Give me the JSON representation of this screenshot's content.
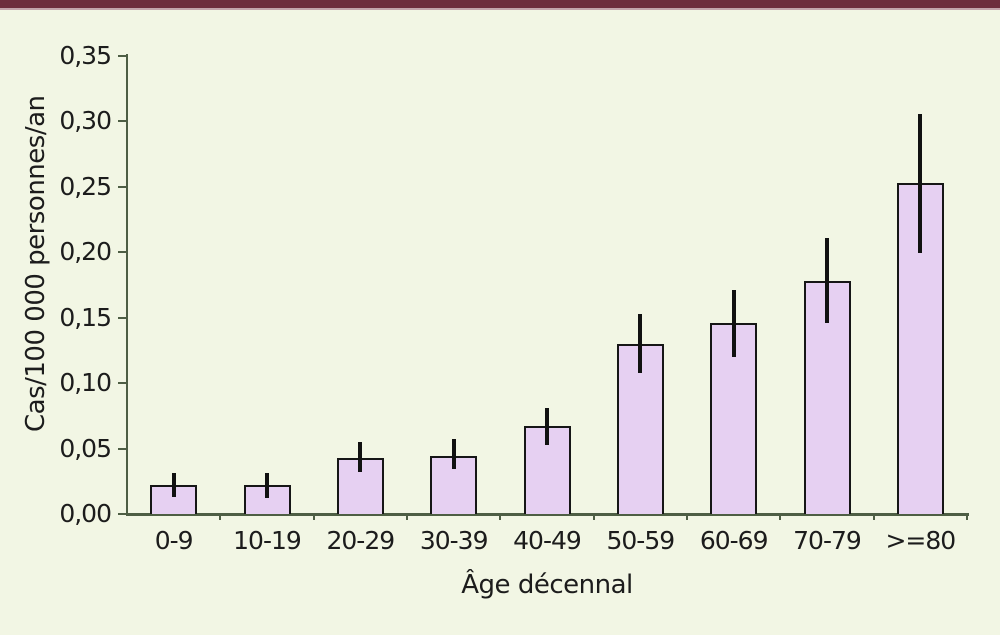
{
  "page": {
    "background": "#f2f6e4",
    "top_bar_color": "#6d2c3d",
    "top_bar_accent_color": "#c2a3ab",
    "axis_color": "#4e5e44",
    "text_color": "#1c1c1c"
  },
  "chart_data": {
    "type": "bar",
    "title": "",
    "xlabel": "Âge décennal",
    "ylabel": "Cas/100 000 personnes/an",
    "categories": [
      "0-9",
      "10-19",
      "20-29",
      "30-39",
      "40-49",
      "50-59",
      "60-69",
      "70-79",
      ">=80"
    ],
    "values": [
      0.022,
      0.022,
      0.043,
      0.044,
      0.067,
      0.13,
      0.146,
      0.178,
      0.253
    ],
    "error_low": [
      0.013,
      0.012,
      0.032,
      0.034,
      0.053,
      0.108,
      0.12,
      0.146,
      0.199
    ],
    "error_high": [
      0.031,
      0.031,
      0.055,
      0.057,
      0.081,
      0.153,
      0.171,
      0.211,
      0.305
    ],
    "ylim": [
      0,
      0.35
    ],
    "ytick_step": 0.05,
    "ytick_labels": [
      "0,00",
      "0,05",
      "0,10",
      "0,15",
      "0,20",
      "0,25",
      "0,30",
      "0,35"
    ],
    "grid": false,
    "legend": null,
    "bar_fill": "#e6d0f2",
    "bar_border": "#161616",
    "errorbar_color": "#111111",
    "decimal_separator": ","
  }
}
